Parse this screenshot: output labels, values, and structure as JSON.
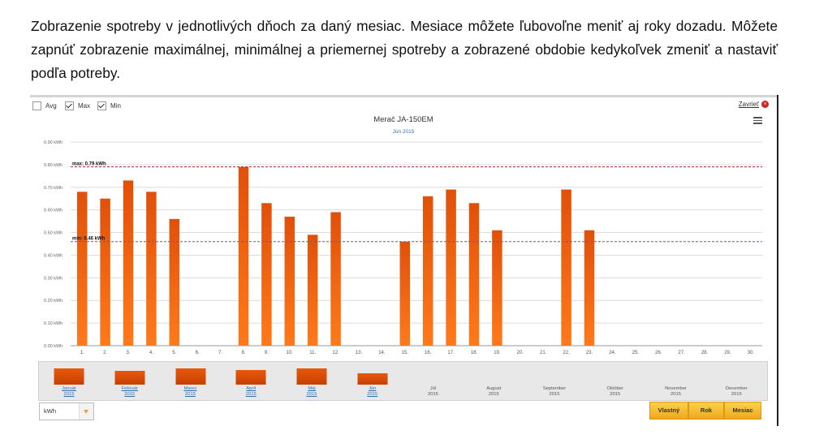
{
  "intro": "Zobrazenie spotreby v jednotlivých dňoch za daný mesiac. Mesiace môžete ľubovoľne meniť aj roky dozadu. Môžete zapnúť zobrazenie maximálnej, minimálnej a priemernej spotreby a zobrazené obdobie kedykoľvek zmeniť a nastaviť podľa potreby.",
  "toggles": [
    {
      "label": "Avg",
      "checked": false
    },
    {
      "label": "Max",
      "checked": true
    },
    {
      "label": "Min",
      "checked": true
    }
  ],
  "close_label": "Zavrieť",
  "colors": {
    "bar": "#e8590c",
    "max_line": "#b22222",
    "min_line": "#5a5fb0"
  },
  "chart_data": {
    "type": "bar",
    "title": "Merač JA-150EM",
    "subtitle": "Jún 2015",
    "xlabel": "",
    "ylabel": "",
    "categories": [
      "1.",
      "2.",
      "3.",
      "4.",
      "5.",
      "6.",
      "7.",
      "8.",
      "9.",
      "10.",
      "11.",
      "12.",
      "13.",
      "14.",
      "15.",
      "16.",
      "17.",
      "18.",
      "19.",
      "20.",
      "21.",
      "22.",
      "23.",
      "24.",
      "25.",
      "26.",
      "27.",
      "28.",
      "29.",
      "30."
    ],
    "values": [
      0.68,
      0.65,
      0.73,
      0.68,
      0.56,
      null,
      null,
      0.79,
      0.63,
      0.57,
      0.49,
      0.59,
      null,
      null,
      0.46,
      0.66,
      0.69,
      0.63,
      0.51,
      null,
      null,
      0.69,
      0.51,
      null,
      null,
      null,
      null,
      null,
      null,
      null
    ],
    "ylim": [
      0,
      0.9
    ],
    "yticks": [
      "0.00 kWh",
      "0.10 kWh",
      "0.20 kWh",
      "0.30 kWh",
      "0.40 kWh",
      "0.50 kWh",
      "0.60 kWh",
      "0.70 kWh",
      "0.80 kWh",
      "0.90 kWh"
    ],
    "reference_lines": [
      {
        "label": "max: 0.79 kWh",
        "value": 0.79
      },
      {
        "label": "min: 0.46 kWh",
        "value": 0.46
      }
    ],
    "grid": true
  },
  "months": [
    {
      "name": "Január",
      "year": "2015",
      "value": 20.5
    },
    {
      "name": "Február",
      "year": "2015",
      "value": 17.5
    },
    {
      "name": "Marec",
      "year": "2015",
      "value": 20.5
    },
    {
      "name": "Apríl",
      "year": "2015",
      "value": 18.5
    },
    {
      "name": "Máj",
      "year": "2015",
      "value": 20.0
    },
    {
      "name": "Jún",
      "year": "2015",
      "value": 14.0
    },
    {
      "name": "Júl",
      "year": "2015",
      "value": null
    },
    {
      "name": "August",
      "year": "2015",
      "value": null
    },
    {
      "name": "September",
      "year": "2015",
      "value": null
    },
    {
      "name": "Október",
      "year": "2015",
      "value": null
    },
    {
      "name": "November",
      "year": "2015",
      "value": null
    },
    {
      "name": "December",
      "year": "2015",
      "value": null
    }
  ],
  "unit_select": {
    "value": "kWh"
  },
  "period_buttons": [
    "Vlastný",
    "Rok",
    "Mesiac"
  ]
}
